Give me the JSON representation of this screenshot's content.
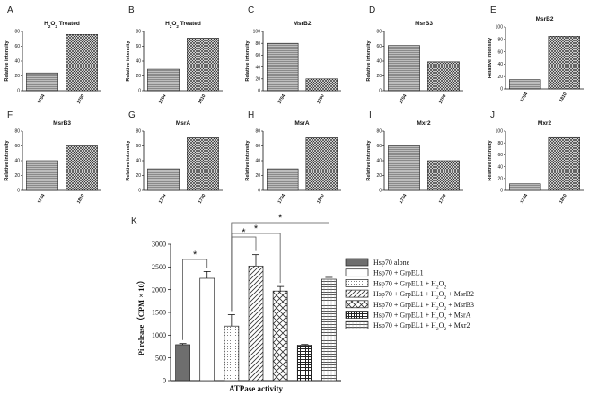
{
  "chart_data": [
    {
      "id": "A",
      "type": "bar",
      "panel_label": "A",
      "title": "H2O2 Treated",
      "title_html": true,
      "ylabel": "Relative intensity",
      "categories": [
        "1704",
        "1700"
      ],
      "values": [
        24,
        76
      ],
      "ylim": [
        0,
        80
      ],
      "yticks": [
        0,
        20,
        40,
        60,
        80
      ],
      "patterns": [
        "hstripe",
        "xhatch"
      ]
    },
    {
      "id": "B",
      "type": "bar",
      "panel_label": "B",
      "title": "H2O2 Treated",
      "title_html": true,
      "ylabel": "Relative intensity",
      "categories": [
        "1704",
        "1810"
      ],
      "values": [
        29,
        71
      ],
      "ylim": [
        0,
        80
      ],
      "yticks": [
        0,
        20,
        40,
        60,
        80
      ],
      "patterns": [
        "hstripe",
        "xhatch"
      ]
    },
    {
      "id": "C",
      "type": "bar",
      "panel_label": "C",
      "title": "MsrB2",
      "ylabel": "Relative intensity",
      "categories": [
        "1704",
        "1700"
      ],
      "values": [
        80,
        20
      ],
      "ylim": [
        0,
        100
      ],
      "yticks": [
        0,
        20,
        40,
        60,
        80,
        100
      ],
      "patterns": [
        "hstripe",
        "xhatch"
      ]
    },
    {
      "id": "D",
      "type": "bar",
      "panel_label": "D",
      "title": "MsrB3",
      "ylabel": "Relative intensity",
      "categories": [
        "1704",
        "1700"
      ],
      "values": [
        61,
        39
      ],
      "ylim": [
        0,
        80
      ],
      "yticks": [
        0,
        20,
        40,
        60,
        80
      ],
      "patterns": [
        "hstripe",
        "xhatch"
      ]
    },
    {
      "id": "E",
      "type": "bar",
      "panel_label": "E",
      "title": "MsrB2",
      "ylabel": "Relative intensity",
      "categories": [
        "1704",
        "1810"
      ],
      "values": [
        15,
        85
      ],
      "ylim": [
        0,
        100
      ],
      "yticks": [
        0,
        20,
        40,
        60,
        80,
        100
      ],
      "patterns": [
        "hstripe",
        "xhatch"
      ]
    },
    {
      "id": "F",
      "type": "bar",
      "panel_label": "F",
      "title": "MsrB3",
      "ylabel": "Relative intensity",
      "categories": [
        "1704",
        "1810"
      ],
      "values": [
        40,
        60
      ],
      "ylim": [
        0,
        80
      ],
      "yticks": [
        0,
        20,
        40,
        60,
        80
      ],
      "patterns": [
        "hstripe",
        "xhatch"
      ]
    },
    {
      "id": "G",
      "type": "bar",
      "panel_label": "G",
      "title": "MsrA",
      "ylabel": "Relative intensity",
      "categories": [
        "1704",
        "1700"
      ],
      "values": [
        29,
        71
      ],
      "ylim": [
        0,
        80
      ],
      "yticks": [
        0,
        20,
        40,
        60,
        80
      ],
      "patterns": [
        "hstripe",
        "xhatch"
      ]
    },
    {
      "id": "H",
      "type": "bar",
      "panel_label": "H",
      "title": "MsrA",
      "ylabel": "Relative intensity",
      "categories": [
        "1704",
        "1810"
      ],
      "values": [
        29,
        71
      ],
      "ylim": [
        0,
        80
      ],
      "yticks": [
        0,
        20,
        40,
        60,
        80
      ],
      "patterns": [
        "hstripe",
        "xhatch"
      ]
    },
    {
      "id": "I",
      "type": "bar",
      "panel_label": "I",
      "title": "Mxr2",
      "ylabel": "Relative intensity",
      "categories": [
        "1704",
        "1700"
      ],
      "values": [
        60,
        40
      ],
      "ylim": [
        0,
        80
      ],
      "yticks": [
        0,
        20,
        40,
        60,
        80
      ],
      "patterns": [
        "hstripe",
        "xhatch"
      ]
    },
    {
      "id": "J",
      "type": "bar",
      "panel_label": "J",
      "title": "Mxr2",
      "ylabel": "Relative intensity",
      "categories": [
        "1704",
        "1810"
      ],
      "values": [
        11,
        89
      ],
      "ylim": [
        0,
        100
      ],
      "yticks": [
        0,
        20,
        40,
        60,
        80,
        100
      ],
      "patterns": [
        "hstripe",
        "xhatch"
      ]
    },
    {
      "id": "K",
      "type": "bar",
      "panel_label": "K",
      "xlabel": "ATPase activity",
      "ylabel": "Pi release（CPM × 10）",
      "ylim": [
        0,
        3000
      ],
      "yticks": [
        0,
        500,
        1000,
        1500,
        2000,
        2500,
        3000
      ],
      "series": [
        {
          "name": "Hsp70  alone",
          "value": 790,
          "error": 25,
          "pattern": "dark"
        },
        {
          "name": "Hsp70 + GrpEL1",
          "value": 2250,
          "error": 150,
          "pattern": "white"
        },
        {
          "name": "Hsp70 + GrpEL1 + H2O2",
          "value": 1200,
          "error": 250,
          "pattern": "dots"
        },
        {
          "name": "Hsp70 + GrpEL1 + H2O2 + MsrB2",
          "value": 2520,
          "error": 250,
          "pattern": "diag"
        },
        {
          "name": "Hsp70 + GrpEL1 + H2O2 + MsrB3",
          "value": 1970,
          "error": 100,
          "pattern": "cross"
        },
        {
          "name": "Hsp70 + GrpEL1 + H2O2 + MsrA",
          "value": 780,
          "error": 15,
          "pattern": "grid"
        },
        {
          "name": "Hsp70 + GrpEL1 + H2O2 + Mxr2",
          "value": 2230,
          "error": 40,
          "pattern": "hlines"
        }
      ],
      "significance": [
        {
          "from": 0,
          "to": 1,
          "label": "*"
        },
        {
          "from": 2,
          "to": 3,
          "label": "*"
        },
        {
          "from": 2,
          "to": 4,
          "label": "*"
        },
        {
          "from": 2,
          "to": 6,
          "label": "*"
        }
      ],
      "legend_position": "right"
    }
  ],
  "colors": {
    "bar_dark": "#6e6e6e",
    "bar_light": "#c8c8c8",
    "ink": "#111111"
  }
}
